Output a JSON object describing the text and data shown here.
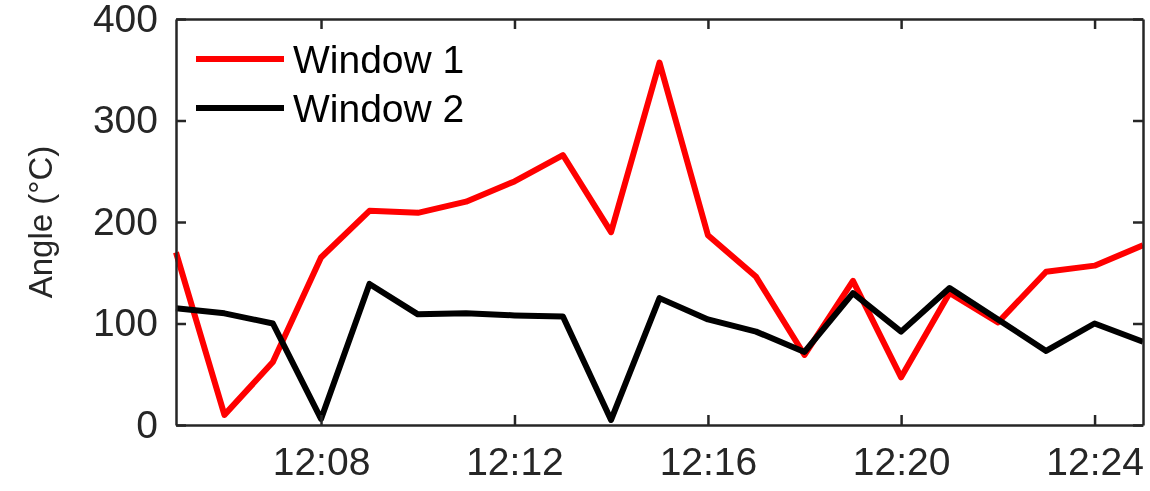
{
  "chart_data": {
    "type": "line",
    "ylabel": "Angle (°C)",
    "x": [
      12.0833,
      12.1,
      12.1167,
      12.1333,
      12.15,
      12.1667,
      12.1833,
      12.2,
      12.2167,
      12.2333,
      12.25,
      12.2667,
      12.2833,
      12.3,
      12.3167,
      12.3333,
      12.35,
      12.3667,
      12.3833,
      12.4,
      12.4167
    ],
    "series": [
      {
        "name": "Window 1",
        "color": "#ff0000",
        "values": [
          170,
          10,
          62,
          165,
          211,
          209,
          220,
          240,
          266,
          190,
          357,
          187,
          146,
          69,
          142,
          47,
          130,
          101,
          151,
          157,
          177
        ]
      },
      {
        "name": "Window 2",
        "color": "#000000",
        "values": [
          115,
          110,
          100,
          6,
          139,
          109,
          110,
          108,
          107,
          5,
          125,
          104,
          92,
          72,
          130,
          92,
          135,
          104,
          73,
          100,
          82
        ]
      }
    ],
    "xlim": [
      12.0833,
      12.4167
    ],
    "xticks": [
      {
        "value": 12.1333,
        "label": "12:08"
      },
      {
        "value": 12.2,
        "label": "12:12"
      },
      {
        "value": 12.2667,
        "label": "12:16"
      },
      {
        "value": 12.3333,
        "label": "12:20"
      },
      {
        "value": 12.4,
        "label": "12:24"
      }
    ],
    "ylim": [
      0,
      400
    ],
    "yticks": [
      0,
      100,
      200,
      300,
      400
    ],
    "legend": "top left",
    "line_style": "solid"
  }
}
